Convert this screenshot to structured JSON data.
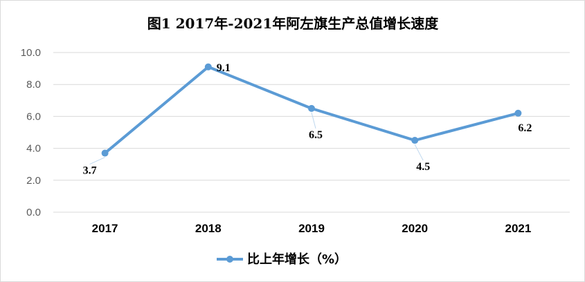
{
  "chart_data": {
    "type": "line",
    "title": "图1 2017年-2021年阿左旗生产总值增长速度",
    "categories": [
      "2017",
      "2018",
      "2019",
      "2020",
      "2021"
    ],
    "series": [
      {
        "name": "比上年增长（%）",
        "values": [
          3.7,
          9.1,
          6.5,
          4.5,
          6.2
        ],
        "color": "#5B9BD5"
      }
    ],
    "data_labels": [
      "3.7",
      "9.1",
      "6.5",
      "4.5",
      "6.2"
    ],
    "ylim": [
      0,
      10
    ],
    "yticks": [
      "0.0",
      "2.0",
      "4.0",
      "6.0",
      "8.0",
      "10.0"
    ],
    "grid": true,
    "legend_position": "bottom"
  },
  "colors": {
    "line": "#5B9BD5",
    "grid": "#d9d9d9"
  }
}
